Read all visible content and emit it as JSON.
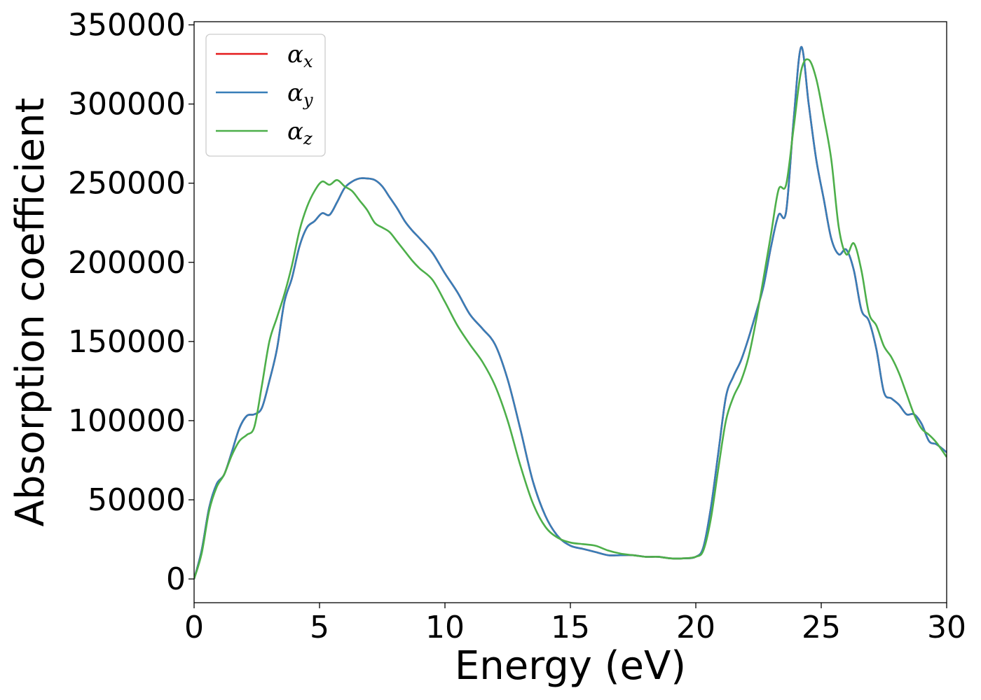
{
  "chart_data": {
    "type": "line",
    "title": "",
    "xlabel": "Energy (eV)",
    "ylabel": "Absorption coefficient",
    "xlim": [
      0,
      30
    ],
    "ylim": [
      -15000,
      352000
    ],
    "xticks": [
      0,
      5,
      10,
      15,
      20,
      25,
      30
    ],
    "xtick_labels": [
      "0",
      "5",
      "10",
      "15",
      "20",
      "25",
      "30"
    ],
    "yticks": [
      0,
      50000,
      100000,
      150000,
      200000,
      250000,
      300000,
      350000
    ],
    "ytick_labels": [
      "0",
      "50000",
      "100000",
      "150000",
      "200000",
      "250000",
      "300000",
      "350000"
    ],
    "grid": false,
    "legend_position": "top-left",
    "series": [
      {
        "name": "α",
        "subscript": "x",
        "color": "#e41a1c",
        "x": [
          0,
          0.3,
          0.6,
          0.9,
          1.2,
          1.5,
          1.8,
          2.1,
          2.4,
          2.7,
          3.0,
          3.3,
          3.6,
          3.9,
          4.2,
          4.5,
          4.8,
          5.1,
          5.4,
          5.7,
          6.0,
          6.3,
          6.6,
          6.9,
          7.2,
          7.5,
          7.8,
          8.1,
          8.4,
          8.7,
          9.0,
          9.5,
          10.0,
          10.5,
          11.0,
          11.5,
          12.0,
          12.5,
          13.0,
          13.5,
          14.0,
          14.5,
          15.0,
          15.5,
          16.0,
          16.5,
          17.0,
          17.5,
          18.0,
          18.5,
          19.0,
          19.5,
          20.0,
          20.3,
          20.6,
          20.9,
          21.2,
          21.5,
          21.8,
          22.1,
          22.4,
          22.7,
          23.0,
          23.3,
          23.6,
          23.9,
          24.2,
          24.5,
          24.8,
          25.1,
          25.4,
          25.7,
          26.0,
          26.3,
          26.6,
          26.9,
          27.2,
          27.5,
          27.8,
          28.1,
          28.4,
          28.7,
          29.0,
          29.3,
          29.6,
          30.0
        ],
        "y": [
          0,
          18000,
          45000,
          60000,
          66000,
          80000,
          95000,
          103000,
          104000,
          108000,
          125000,
          145000,
          175000,
          190000,
          210000,
          222000,
          226000,
          231000,
          230000,
          238000,
          247000,
          251000,
          253000,
          253000,
          252000,
          248000,
          241000,
          234000,
          226000,
          220000,
          215000,
          206000,
          193000,
          181000,
          167000,
          158000,
          148000,
          126000,
          95000,
          62000,
          40000,
          27000,
          21000,
          19000,
          17000,
          15000,
          15000,
          15000,
          14000,
          14000,
          13000,
          13000,
          14000,
          20000,
          45000,
          80000,
          115000,
          128000,
          138000,
          152000,
          168000,
          185000,
          210000,
          230000,
          232000,
          290000,
          336000,
          300000,
          265000,
          240000,
          215000,
          205000,
          208000,
          195000,
          170000,
          163000,
          145000,
          118000,
          114000,
          110000,
          104000,
          104000,
          98000,
          87000,
          85000,
          80000
        ]
      },
      {
        "name": "α",
        "subscript": "y",
        "color": "#377eb8",
        "x": [
          0,
          0.3,
          0.6,
          0.9,
          1.2,
          1.5,
          1.8,
          2.1,
          2.4,
          2.7,
          3.0,
          3.3,
          3.6,
          3.9,
          4.2,
          4.5,
          4.8,
          5.1,
          5.4,
          5.7,
          6.0,
          6.3,
          6.6,
          6.9,
          7.2,
          7.5,
          7.8,
          8.1,
          8.4,
          8.7,
          9.0,
          9.5,
          10.0,
          10.5,
          11.0,
          11.5,
          12.0,
          12.5,
          13.0,
          13.5,
          14.0,
          14.5,
          15.0,
          15.5,
          16.0,
          16.5,
          17.0,
          17.5,
          18.0,
          18.5,
          19.0,
          19.5,
          20.0,
          20.3,
          20.6,
          20.9,
          21.2,
          21.5,
          21.8,
          22.1,
          22.4,
          22.7,
          23.0,
          23.3,
          23.6,
          23.9,
          24.2,
          24.5,
          24.8,
          25.1,
          25.4,
          25.7,
          26.0,
          26.3,
          26.6,
          26.9,
          27.2,
          27.5,
          27.8,
          28.1,
          28.4,
          28.7,
          29.0,
          29.3,
          29.6,
          30.0
        ],
        "y": [
          0,
          18000,
          45000,
          60000,
          66000,
          80000,
          95000,
          103000,
          104000,
          108000,
          125000,
          145000,
          175000,
          190000,
          210000,
          222000,
          226000,
          231000,
          230000,
          238000,
          247000,
          251000,
          253000,
          253000,
          252000,
          248000,
          241000,
          234000,
          226000,
          220000,
          215000,
          206000,
          193000,
          181000,
          167000,
          158000,
          148000,
          126000,
          95000,
          62000,
          40000,
          27000,
          21000,
          19000,
          17000,
          15000,
          15000,
          15000,
          14000,
          14000,
          13000,
          13000,
          14000,
          20000,
          45000,
          80000,
          115000,
          128000,
          138000,
          152000,
          168000,
          185000,
          210000,
          230000,
          232000,
          290000,
          336000,
          300000,
          265000,
          240000,
          215000,
          205000,
          208000,
          195000,
          170000,
          163000,
          145000,
          118000,
          114000,
          110000,
          104000,
          104000,
          98000,
          87000,
          85000,
          80000
        ]
      },
      {
        "name": "α",
        "subscript": "z",
        "color": "#4daf4a",
        "x": [
          0,
          0.3,
          0.6,
          0.9,
          1.2,
          1.5,
          1.8,
          2.1,
          2.4,
          2.7,
          3.0,
          3.3,
          3.6,
          3.9,
          4.2,
          4.5,
          4.8,
          5.1,
          5.4,
          5.7,
          6.0,
          6.3,
          6.6,
          6.9,
          7.2,
          7.5,
          7.8,
          8.1,
          8.4,
          8.7,
          9.0,
          9.5,
          10.0,
          10.5,
          11.0,
          11.5,
          12.0,
          12.5,
          13.0,
          13.5,
          14.0,
          14.5,
          15.0,
          15.5,
          16.0,
          16.5,
          17.0,
          17.5,
          18.0,
          18.5,
          19.0,
          19.5,
          20.0,
          20.3,
          20.6,
          20.9,
          21.2,
          21.5,
          21.8,
          22.1,
          22.4,
          22.7,
          23.0,
          23.3,
          23.6,
          23.9,
          24.2,
          24.5,
          24.8,
          25.1,
          25.4,
          25.7,
          26.0,
          26.3,
          26.6,
          26.9,
          27.2,
          27.5,
          27.8,
          28.1,
          28.4,
          28.7,
          29.0,
          29.3,
          29.6,
          30.0
        ],
        "y": [
          0,
          16000,
          43000,
          58000,
          66000,
          78000,
          87000,
          91000,
          96000,
          122000,
          150000,
          165000,
          180000,
          198000,
          220000,
          235000,
          245000,
          251000,
          249000,
          252000,
          248000,
          245000,
          239000,
          233000,
          225000,
          222000,
          219000,
          213000,
          207000,
          201000,
          196000,
          189000,
          175000,
          160000,
          148000,
          137000,
          122000,
          100000,
          72000,
          48000,
          33000,
          26000,
          23000,
          22000,
          21000,
          18000,
          16000,
          15000,
          14000,
          14000,
          13000,
          13000,
          14000,
          18000,
          38000,
          70000,
          100000,
          115000,
          125000,
          140000,
          163000,
          190000,
          218000,
          246000,
          249000,
          285000,
          321000,
          328000,
          316000,
          292000,
          265000,
          222000,
          205000,
          212000,
          195000,
          168000,
          160000,
          147000,
          140000,
          130000,
          117000,
          104000,
          95000,
          91000,
          86000,
          77000
        ]
      }
    ]
  }
}
